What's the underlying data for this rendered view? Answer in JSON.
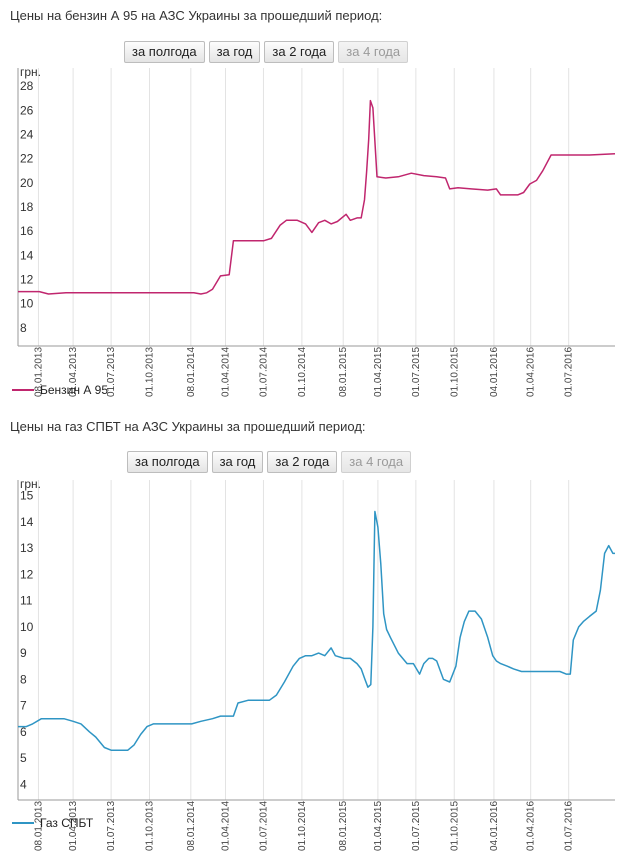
{
  "charts": [
    {
      "title": "Цены на бензин А 95 на АЗС Украины за прошедший период:",
      "buttons": [
        {
          "label": "за полгода",
          "disabled": false
        },
        {
          "label": "за год",
          "disabled": false
        },
        {
          "label": "за 2 года",
          "disabled": false
        },
        {
          "label": "за 4 года",
          "disabled": true
        }
      ],
      "legend": "Бензин А 95",
      "color": "#c0266e"
    },
    {
      "title": "Цены на газ СПБТ на АЗС Украины за прошедший период:",
      "buttons": [
        {
          "label": "за полгода",
          "disabled": false
        },
        {
          "label": "за год",
          "disabled": false
        },
        {
          "label": "за 2 года",
          "disabled": false
        },
        {
          "label": "за 4 года",
          "disabled": true
        }
      ],
      "legend": "Газ СПБТ",
      "color": "#2f95c4"
    }
  ],
  "chart_data": [
    {
      "type": "line",
      "title": "Цены на бензин А 95 на АЗС Украины за прошедший период:",
      "ylabel": "грн.",
      "yticks": [
        8,
        10,
        12,
        14,
        16,
        18,
        20,
        22,
        24,
        26,
        28
      ],
      "ylim": [
        6.5,
        29.5
      ],
      "xlim": [
        "2012-11-20",
        "2016-10-20"
      ],
      "xticks": [
        "08.01.2013",
        "01.04.2013",
        "01.07.2013",
        "01.10.2013",
        "08.01.2014",
        "01.04.2014",
        "01.07.2014",
        "01.10.2014",
        "08.01.2015",
        "01.04.2015",
        "01.07.2015",
        "01.10.2015",
        "04.01.2016",
        "01.04.2016",
        "01.07.2016"
      ],
      "grid": "vertical",
      "legend_position": "bottom-left",
      "series": [
        {
          "name": "Бензин А 95",
          "color": "#c0266e",
          "x": [
            "2012-11-20",
            "2013-01-10",
            "2013-02-01",
            "2013-03-15",
            "2013-06-01",
            "2013-09-01",
            "2013-12-01",
            "2014-01-15",
            "2014-02-01",
            "2014-02-15",
            "2014-03-01",
            "2014-03-20",
            "2014-04-10",
            "2014-04-20",
            "2014-07-01",
            "2014-07-20",
            "2014-08-10",
            "2014-08-25",
            "2014-09-05",
            "2014-09-20",
            "2014-10-10",
            "2014-10-25",
            "2014-11-10",
            "2014-11-25",
            "2014-12-10",
            "2014-12-25",
            "2015-01-15",
            "2015-01-25",
            "2015-02-10",
            "2015-02-20",
            "2015-02-28",
            "2015-03-05",
            "2015-03-10",
            "2015-03-14",
            "2015-03-20",
            "2015-03-30",
            "2015-04-20",
            "2015-05-20",
            "2015-06-20",
            "2015-07-20",
            "2015-08-20",
            "2015-09-10",
            "2015-09-20",
            "2015-10-10",
            "2015-11-10",
            "2015-12-20",
            "2016-01-10",
            "2016-01-20",
            "2016-02-20",
            "2016-03-01",
            "2016-03-15",
            "2016-03-30",
            "2016-04-15",
            "2016-04-30",
            "2016-05-20",
            "2016-06-20",
            "2016-08-20",
            "2016-10-20"
          ],
          "y": [
            11.0,
            11.0,
            10.8,
            10.9,
            10.9,
            10.9,
            10.9,
            10.9,
            10.8,
            10.9,
            11.2,
            12.3,
            12.4,
            15.2,
            15.2,
            15.4,
            16.5,
            16.9,
            16.9,
            16.9,
            16.6,
            15.9,
            16.7,
            16.9,
            16.6,
            16.8,
            17.4,
            16.9,
            17.1,
            17.1,
            18.6,
            20.9,
            23.6,
            26.8,
            26.2,
            20.5,
            20.4,
            20.5,
            20.8,
            20.6,
            20.5,
            20.4,
            19.5,
            19.6,
            19.5,
            19.4,
            19.5,
            19.0,
            19.0,
            19.0,
            19.2,
            19.9,
            20.2,
            21.0,
            22.3,
            22.3,
            22.3,
            22.4
          ]
        }
      ]
    },
    {
      "type": "line",
      "title": "Цены на газ СПБТ на АЗС Украины за прошедший период:",
      "ylabel": "грн.",
      "yticks": [
        4,
        5,
        6,
        7,
        8,
        9,
        10,
        11,
        12,
        13,
        14,
        15
      ],
      "ylim": [
        3.4,
        15.6
      ],
      "xlim": [
        "2012-11-20",
        "2016-10-20"
      ],
      "xticks": [
        "08.01.2013",
        "01.04.2013",
        "01.07.2013",
        "01.10.2013",
        "08.01.2014",
        "01.04.2014",
        "01.07.2014",
        "01.10.2014",
        "08.01.2015",
        "01.04.2015",
        "01.07.2015",
        "01.10.2015",
        "04.01.2016",
        "01.04.2016",
        "01.07.2016"
      ],
      "grid": "vertical",
      "legend_position": "bottom-left",
      "series": [
        {
          "name": "Газ СПБТ",
          "color": "#2f95c4",
          "x": [
            "2012-11-20",
            "2012-12-10",
            "2012-12-25",
            "2013-01-15",
            "2013-02-15",
            "2013-03-10",
            "2013-04-01",
            "2013-04-20",
            "2013-05-10",
            "2013-05-25",
            "2013-06-15",
            "2013-07-01",
            "2013-07-20",
            "2013-08-10",
            "2013-08-25",
            "2013-09-10",
            "2013-09-25",
            "2013-10-10",
            "2013-11-01",
            "2013-12-01",
            "2014-01-10",
            "2014-02-01",
            "2014-03-01",
            "2014-03-20",
            "2014-04-05",
            "2014-04-20",
            "2014-05-01",
            "2014-05-25",
            "2014-06-20",
            "2014-07-15",
            "2014-08-01",
            "2014-08-20",
            "2014-09-10",
            "2014-09-25",
            "2014-10-10",
            "2014-10-25",
            "2014-11-10",
            "2014-11-25",
            "2014-12-10",
            "2014-12-20",
            "2015-01-10",
            "2015-01-25",
            "2015-02-10",
            "2015-02-20",
            "2015-03-01",
            "2015-03-08",
            "2015-03-15",
            "2015-03-20",
            "2015-03-25",
            "2015-04-01",
            "2015-04-08",
            "2015-04-15",
            "2015-04-22",
            "2015-05-01",
            "2015-05-20",
            "2015-06-10",
            "2015-06-25",
            "2015-07-10",
            "2015-07-20",
            "2015-08-01",
            "2015-08-10",
            "2015-08-20",
            "2015-09-05",
            "2015-09-20",
            "2015-10-05",
            "2015-10-15",
            "2015-10-25",
            "2015-11-05",
            "2015-11-20",
            "2015-12-05",
            "2015-12-20",
            "2016-01-01",
            "2016-01-10",
            "2016-01-20",
            "2016-02-05",
            "2016-02-20",
            "2016-03-10",
            "2016-04-01",
            "2016-04-20",
            "2016-05-15",
            "2016-06-10",
            "2016-06-25",
            "2016-07-05",
            "2016-07-12",
            "2016-07-25",
            "2016-08-05",
            "2016-08-20",
            "2016-09-05",
            "2016-09-15",
            "2016-09-25",
            "2016-10-05",
            "2016-10-15",
            "2016-10-20"
          ],
          "y": [
            6.2,
            6.2,
            6.3,
            6.5,
            6.5,
            6.5,
            6.4,
            6.3,
            6.0,
            5.8,
            5.4,
            5.3,
            5.3,
            5.3,
            5.5,
            5.9,
            6.2,
            6.3,
            6.3,
            6.3,
            6.3,
            6.4,
            6.5,
            6.6,
            6.6,
            6.6,
            7.1,
            7.2,
            7.2,
            7.2,
            7.4,
            7.9,
            8.5,
            8.8,
            8.9,
            8.9,
            9.0,
            8.9,
            9.2,
            8.9,
            8.8,
            8.8,
            8.6,
            8.4,
            8.0,
            7.7,
            7.8,
            10.0,
            14.4,
            13.8,
            12.4,
            10.5,
            9.9,
            9.6,
            9.0,
            8.6,
            8.6,
            8.2,
            8.6,
            8.8,
            8.8,
            8.7,
            8.0,
            7.9,
            8.5,
            9.6,
            10.2,
            10.6,
            10.6,
            10.3,
            9.6,
            8.9,
            8.7,
            8.6,
            8.5,
            8.4,
            8.3,
            8.3,
            8.3,
            8.3,
            8.3,
            8.2,
            8.2,
            9.5,
            10.0,
            10.2,
            10.4,
            10.6,
            11.4,
            12.8,
            13.1,
            12.8,
            12.8
          ]
        }
      ]
    }
  ]
}
